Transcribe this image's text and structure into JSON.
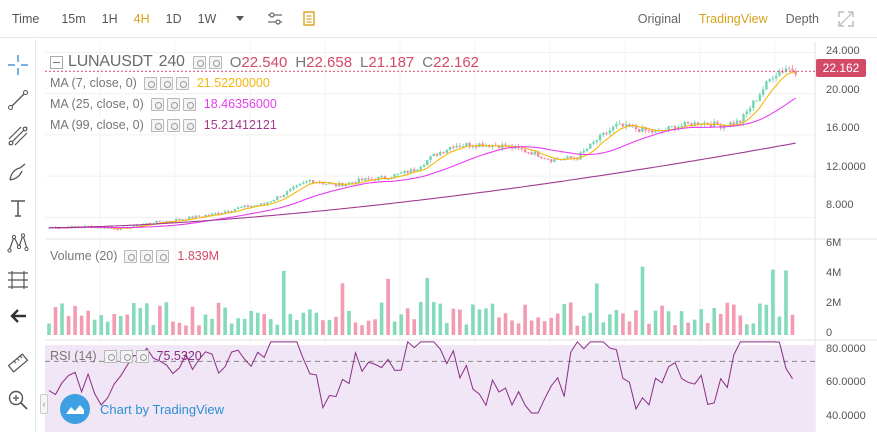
{
  "toolbar": {
    "time_label": "Time",
    "intervals": [
      "15m",
      "1H",
      "4H",
      "1D",
      "1W"
    ],
    "active_interval": "4H",
    "views": [
      "Original",
      "TradingView",
      "Depth"
    ],
    "active_view": "TradingView"
  },
  "symbol": {
    "name": "LUNAUSDT",
    "interval": "240",
    "open_key": "O",
    "open": "22.540",
    "high_key": "H",
    "high": "22.658",
    "low_key": "L",
    "low": "21.187",
    "close_key": "C",
    "close": "22.162"
  },
  "moving_averages": [
    {
      "label": "MA (7, close, 0)",
      "value": "21.52200000",
      "color": "#f5b70a"
    },
    {
      "label": "MA (25, close, 0)",
      "value": "18.46356000",
      "color": "#e83ef0"
    },
    {
      "label": "MA (99, close, 0)",
      "value": "15.21412121",
      "color": "#a23b8e"
    }
  ],
  "volume_legend": {
    "label": "Volume (20)",
    "value": "1.839M",
    "color": "#d34a69"
  },
  "rsi_legend": {
    "label": "RSI (14)",
    "value": "75.5320",
    "color": "#8a2c85"
  },
  "last_price_tag": "22.162",
  "price_axis": [
    "24.000",
    "20.000",
    "16.000",
    "12.0000",
    "8.000"
  ],
  "volume_axis": [
    "6M",
    "4M",
    "2M",
    "0"
  ],
  "rsi_axis": [
    "80.0000",
    "60.0000",
    "40.0000"
  ],
  "branding": "Chart by TradingView",
  "colors": {
    "up": "#70d4b0",
    "down": "#f08aa3",
    "accent": "#d9a21b"
  },
  "chart_data": {
    "type": "candlestick",
    "price_ylim": [
      6,
      25
    ],
    "volume_ylim": [
      0,
      6000000
    ],
    "rsi_ylim": [
      35,
      90
    ],
    "rsi_levels": [
      70
    ]
  }
}
